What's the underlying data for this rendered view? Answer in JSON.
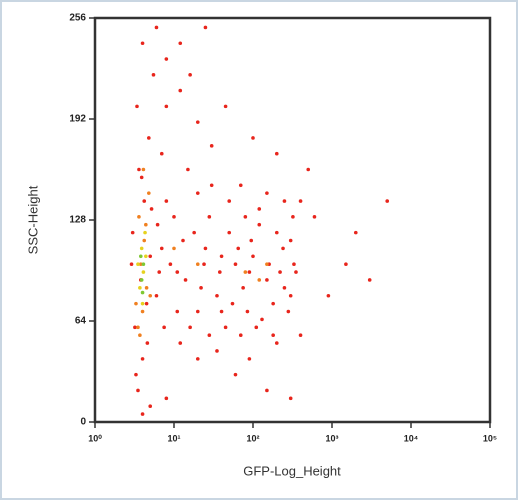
{
  "chart_data": {
    "type": "scatter",
    "x_label": "GFP-Log_Height",
    "y_label": "SSC-Height",
    "xscale": "log",
    "xlim": [
      1,
      100000
    ],
    "xticks": [
      {
        "value": 1,
        "label": "10⁰"
      },
      {
        "value": 10,
        "label": "10¹"
      },
      {
        "value": 100,
        "label": "10²"
      },
      {
        "value": 1000,
        "label": "10³"
      },
      {
        "value": 10000,
        "label": "10⁴"
      },
      {
        "value": 100000,
        "label": "10⁵"
      }
    ],
    "ylim": [
      0,
      256
    ],
    "yticks": [
      0,
      64,
      128,
      192,
      256
    ],
    "series": [
      {
        "color": "#e8251c",
        "x": [
          3.5,
          4,
          3.2,
          4.5,
          3.8,
          5,
          3,
          4.2,
          3.6,
          4.8,
          3.4,
          5.5,
          4,
          6,
          8,
          12,
          20,
          7,
          15,
          30,
          50,
          80,
          120,
          200,
          300,
          10,
          18,
          25,
          40,
          60,
          90,
          150,
          250,
          350,
          9,
          14,
          22,
          35,
          55,
          85,
          130,
          180,
          280,
          6,
          11,
          16,
          28,
          45,
          70,
          110,
          7,
          13,
          24,
          38,
          65,
          100,
          160,
          240,
          320,
          400,
          600,
          2000,
          5000,
          1500,
          900,
          3000,
          45,
          100,
          200,
          500,
          20,
          60,
          150,
          300,
          8,
          5,
          4,
          12,
          35,
          90,
          200,
          400,
          8,
          20,
          70,
          150,
          250,
          30,
          12,
          25,
          8,
          16,
          3.3,
          4.6,
          5.2,
          3.9,
          6.5,
          7.5,
          2.9,
          6.2,
          300,
          180,
          50,
          120,
          75,
          40,
          20,
          11,
          28,
          95,
          220,
          330
        ],
        "values": [
          20,
          40,
          60,
          75,
          90,
          105,
          120,
          140,
          160,
          180,
          200,
          220,
          240,
          250,
          230,
          210,
          190,
          170,
          160,
          150,
          140,
          130,
          125,
          120,
          115,
          130,
          120,
          110,
          105,
          100,
          95,
          90,
          85,
          95,
          100,
          90,
          85,
          80,
          75,
          70,
          65,
          75,
          70,
          80,
          70,
          60,
          55,
          60,
          55,
          60,
          110,
          115,
          100,
          95,
          110,
          105,
          100,
          110,
          130,
          140,
          130,
          120,
          140,
          100,
          80,
          90,
          200,
          180,
          170,
          160,
          40,
          30,
          20,
          15,
          15,
          10,
          5,
          50,
          45,
          40,
          50,
          55,
          140,
          145,
          150,
          145,
          140,
          175,
          240,
          250,
          200,
          220,
          30,
          50,
          135,
          155,
          95,
          60,
          100,
          125,
          80,
          55,
          120,
          135,
          85,
          70,
          70,
          95,
          130,
          115,
          95,
          100
        ]
      },
      {
        "color": "#f08020",
        "x": [
          3.5,
          4,
          4.5,
          3.8,
          4.2,
          3.6,
          4.8,
          5,
          3.3,
          4.4,
          80,
          120,
          150,
          20,
          10,
          4.1,
          3.7
        ],
        "values": [
          60,
          70,
          85,
          100,
          115,
          130,
          145,
          80,
          75,
          125,
          95,
          90,
          100,
          100,
          110,
          160,
          55
        ]
      },
      {
        "color": "#e6d21e",
        "x": [
          3.7,
          4.1,
          3.9,
          4.3,
          3.5,
          4.0,
          4.4
        ],
        "values": [
          85,
          95,
          110,
          120,
          100,
          75,
          105
        ]
      },
      {
        "color": "#7ec832",
        "x": [
          3.9,
          4.1,
          3.8,
          4.0
        ],
        "values": [
          90,
          100,
          105,
          82
        ]
      }
    ]
  }
}
